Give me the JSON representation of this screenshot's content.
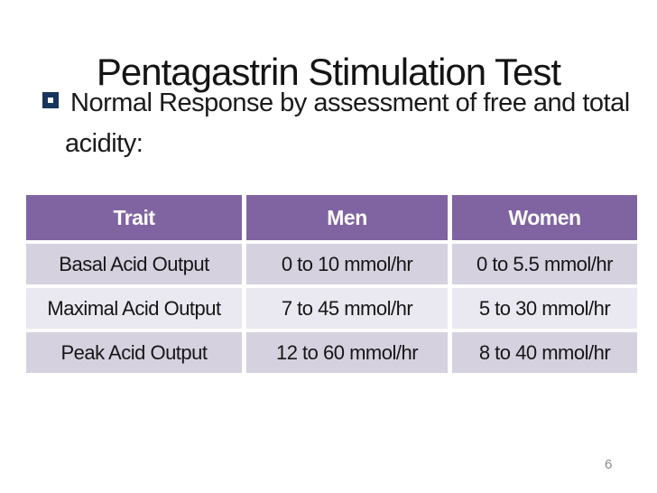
{
  "slide": {
    "title": "Pentagastrin Stimulation Test",
    "bullet_text": "Normal Response by assessment of free and total acidity:",
    "page_number": "6"
  },
  "table": {
    "headers": [
      "Trait",
      "Men",
      "Women"
    ],
    "rows": [
      [
        "Basal Acid Output",
        "0 to 10 mmol/hr",
        "0 to 5.5 mmol/hr"
      ],
      [
        "Maximal Acid Output",
        "7 to 45 mmol/hr",
        "5 to 30 mmol/hr"
      ],
      [
        "Peak Acid Output",
        "12 to 60 mmol/hr",
        "8 to 40 mmol/hr"
      ]
    ]
  },
  "chart_data": {
    "type": "table",
    "title": "Pentagastrin Stimulation Test",
    "columns": [
      "Trait",
      "Men",
      "Women"
    ],
    "rows": [
      {
        "trait": "Basal Acid Output",
        "men": "0 to 10 mmol/hr",
        "women": "0 to 5.5 mmol/hr"
      },
      {
        "trait": "Maximal Acid Output",
        "men": "7 to 45 mmol/hr",
        "women": "5 to 30 mmol/hr"
      },
      {
        "trait": "Peak Acid Output",
        "men": "12 to 60 mmol/hr",
        "women": "8 to 40 mmol/hr"
      }
    ]
  },
  "colors": {
    "header_bg": "#8064A2",
    "row_odd_bg": "#D5D1DF",
    "row_even_bg": "#EAE8F0",
    "bullet_square": "#17365D",
    "title_text": "#141414",
    "header_text": "#FFFFFF",
    "cell_text": "#161616",
    "page_number_text": "#8A8A8A",
    "background": "#FFFFFF"
  }
}
